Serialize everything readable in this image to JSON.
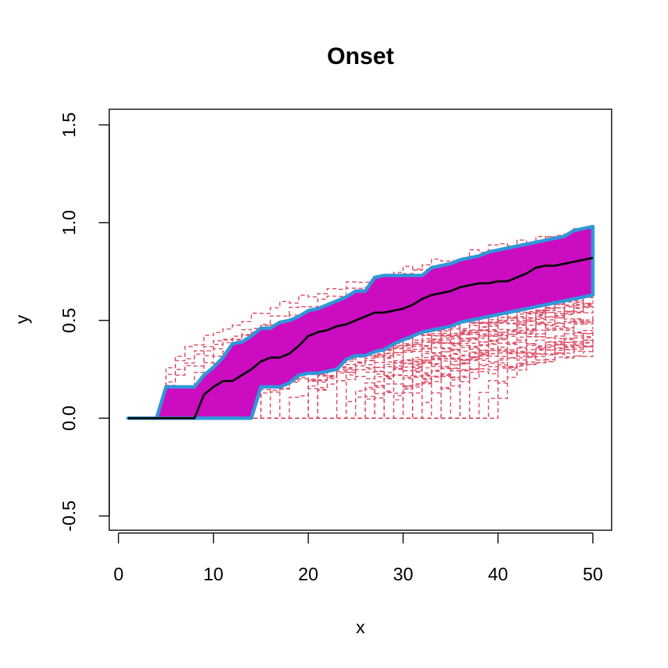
{
  "chart_data": {
    "type": "line",
    "title": "Onset",
    "xlabel": "x",
    "ylabel": "y",
    "xlim": [
      0,
      52
    ],
    "ylim": [
      -0.57,
      1.57
    ],
    "x_ticks": [
      "0",
      "10",
      "20",
      "30",
      "40",
      "50"
    ],
    "y_ticks": [
      "-0.5",
      "0.0",
      "0.5",
      "1.0",
      "1.5"
    ],
    "grid": false,
    "legend": "none",
    "colors": {
      "band_fill": "#cc0cc0",
      "band_border": "#2f97d8",
      "median": "#000000",
      "trajectories": "#dc5268",
      "axes": "#000000"
    },
    "x": [
      1,
      2,
      3,
      4,
      5,
      6,
      7,
      8,
      9,
      10,
      11,
      12,
      13,
      14,
      15,
      16,
      17,
      18,
      19,
      20,
      21,
      22,
      23,
      24,
      25,
      26,
      27,
      28,
      29,
      30,
      31,
      32,
      33,
      34,
      35,
      36,
      37,
      38,
      39,
      40,
      41,
      42,
      43,
      44,
      45,
      46,
      47,
      48,
      49,
      50
    ],
    "series": [
      {
        "role": "band-upper",
        "values": [
          0,
          0,
          0,
          0,
          0.16,
          0.16,
          0.16,
          0.16,
          0.22,
          0.26,
          0.31,
          0.38,
          0.39,
          0.42,
          0.46,
          0.46,
          0.49,
          0.5,
          0.52,
          0.55,
          0.56,
          0.58,
          0.6,
          0.62,
          0.65,
          0.65,
          0.72,
          0.73,
          0.73,
          0.73,
          0.73,
          0.73,
          0.77,
          0.78,
          0.79,
          0.81,
          0.82,
          0.83,
          0.85,
          0.86,
          0.87,
          0.88,
          0.89,
          0.9,
          0.91,
          0.92,
          0.93,
          0.96,
          0.97,
          0.98
        ]
      },
      {
        "role": "band-lower",
        "values": [
          0,
          0,
          0,
          0,
          0,
          0,
          0,
          0,
          0,
          0,
          0,
          0,
          0,
          0,
          0.16,
          0.16,
          0.16,
          0.18,
          0.22,
          0.23,
          0.23,
          0.24,
          0.25,
          0.3,
          0.32,
          0.32,
          0.34,
          0.35,
          0.38,
          0.4,
          0.42,
          0.44,
          0.45,
          0.46,
          0.47,
          0.49,
          0.5,
          0.51,
          0.52,
          0.53,
          0.54,
          0.55,
          0.56,
          0.57,
          0.58,
          0.59,
          0.6,
          0.61,
          0.62,
          0.63
        ]
      },
      {
        "role": "median",
        "values": [
          0,
          0,
          0,
          0,
          0,
          0,
          0,
          0,
          0.12,
          0.16,
          0.19,
          0.19,
          0.22,
          0.25,
          0.29,
          0.31,
          0.31,
          0.33,
          0.37,
          0.42,
          0.44,
          0.45,
          0.47,
          0.48,
          0.5,
          0.52,
          0.54,
          0.54,
          0.55,
          0.56,
          0.58,
          0.61,
          0.63,
          0.64,
          0.65,
          0.67,
          0.68,
          0.69,
          0.69,
          0.7,
          0.7,
          0.72,
          0.74,
          0.77,
          0.78,
          0.78,
          0.79,
          0.8,
          0.81,
          0.82
        ]
      }
    ]
  }
}
